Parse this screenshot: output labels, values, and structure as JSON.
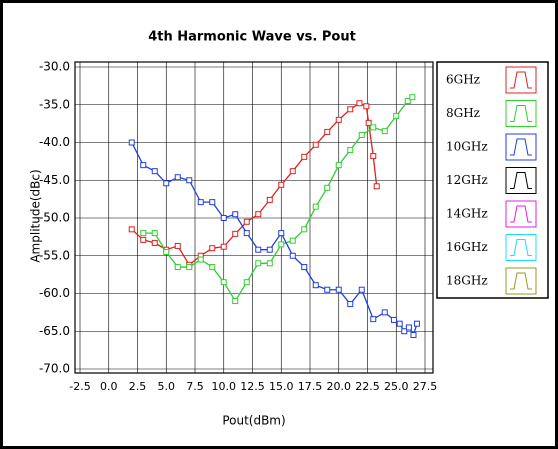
{
  "chart_data": {
    "type": "line",
    "title": "4th Harmonic Wave vs. Pout",
    "xlabel": "Pout(dBm)",
    "ylabel": "Amplitude(dBc)",
    "xlim": [
      -2.5,
      27.5
    ],
    "ylim": [
      -70,
      -30
    ],
    "xticks": [
      -2.5,
      {
        "value": 0,
        "label": "0.0"
      },
      2.5,
      {
        "value": 5,
        "label": "5.0"
      },
      7.5,
      {
        "value": 10,
        "label": "10.0"
      },
      12.5,
      {
        "value": 15,
        "label": "15.0"
      },
      17.5,
      {
        "value": 20,
        "label": "20.0"
      },
      22.5,
      {
        "value": 25,
        "label": "25.0"
      },
      27.5
    ],
    "yticks": [
      {
        "value": -30,
        "label": "-30.0"
      },
      {
        "value": -35,
        "label": "-35.0"
      },
      {
        "value": -40,
        "label": "-40.0"
      },
      {
        "value": -45,
        "label": "-45.0"
      },
      {
        "value": -50,
        "label": "-50.0"
      },
      {
        "value": -55,
        "label": "-55.0"
      },
      {
        "value": -60,
        "label": "-60.0"
      },
      {
        "value": -65,
        "label": "-65.0"
      },
      {
        "value": -70,
        "label": "-70.0"
      }
    ],
    "grid": true,
    "legend": "right",
    "series": [
      {
        "name": "6GHz",
        "color": "#e02020",
        "x": [
          2,
          3,
          4,
          5,
          6,
          7,
          8,
          9,
          10,
          11,
          12,
          13,
          14,
          15,
          16,
          17,
          18,
          19,
          20,
          21,
          21.8,
          22.4,
          22.6,
          23,
          23.3
        ],
        "values": [
          -51.5,
          -52.9,
          -53.3,
          -54.2,
          -53.7,
          -56.2,
          -55,
          -54,
          -53.8,
          -52.1,
          -50.5,
          -49.5,
          -47.6,
          -45.6,
          -43.8,
          -41.9,
          -40.3,
          -38.6,
          -37,
          -35.6,
          -34.8,
          -35.2,
          -37.4,
          -41.8,
          -45.8
        ]
      },
      {
        "name": "8GHz",
        "color": "#30d030",
        "x": [
          3,
          4,
          5,
          6,
          7,
          8,
          9,
          10,
          11,
          12,
          13,
          14,
          15,
          16,
          17,
          18,
          19,
          20,
          21,
          22,
          23,
          24,
          25,
          26,
          26.4
        ],
        "values": [
          -52,
          -52,
          -54.5,
          -56.5,
          -56.5,
          -55.5,
          -56.5,
          -58.5,
          -61,
          -58.5,
          -56,
          -56,
          -53.5,
          -53,
          -51.5,
          -48.5,
          -46,
          -43,
          -41,
          -39,
          -38,
          -38.5,
          -36.5,
          -34.5,
          -34
        ]
      },
      {
        "name": "10GHz",
        "color": "#2040e0",
        "x": [
          2,
          3,
          4,
          5,
          6,
          7,
          8,
          9,
          10,
          11,
          12,
          13,
          14,
          15,
          16,
          17,
          18,
          19,
          20,
          21,
          22,
          23,
          24,
          24.8,
          25.3,
          25.7,
          26.1,
          26.5,
          26.8
        ],
        "values": [
          -40,
          -43,
          -43.8,
          -45.4,
          -44.6,
          -45,
          -47.9,
          -47.9,
          -50,
          -49.5,
          -52,
          -54.2,
          -54.2,
          -52,
          -55,
          -56.5,
          -58.9,
          -59.5,
          -59.5,
          -61.4,
          -59.5,
          -63.4,
          -62.5,
          -63.5,
          -64,
          -65,
          -64.5,
          -65.5,
          -64
        ]
      },
      {
        "name": "12GHz",
        "color": "#000000",
        "x": [],
        "values": []
      },
      {
        "name": "14GHz",
        "color": "#e020e0",
        "x": [],
        "values": []
      },
      {
        "name": "16GHz",
        "color": "#20e0f0",
        "x": [],
        "values": []
      },
      {
        "name": "18GHz",
        "color": "#9a9a20",
        "x": [],
        "values": []
      }
    ]
  }
}
